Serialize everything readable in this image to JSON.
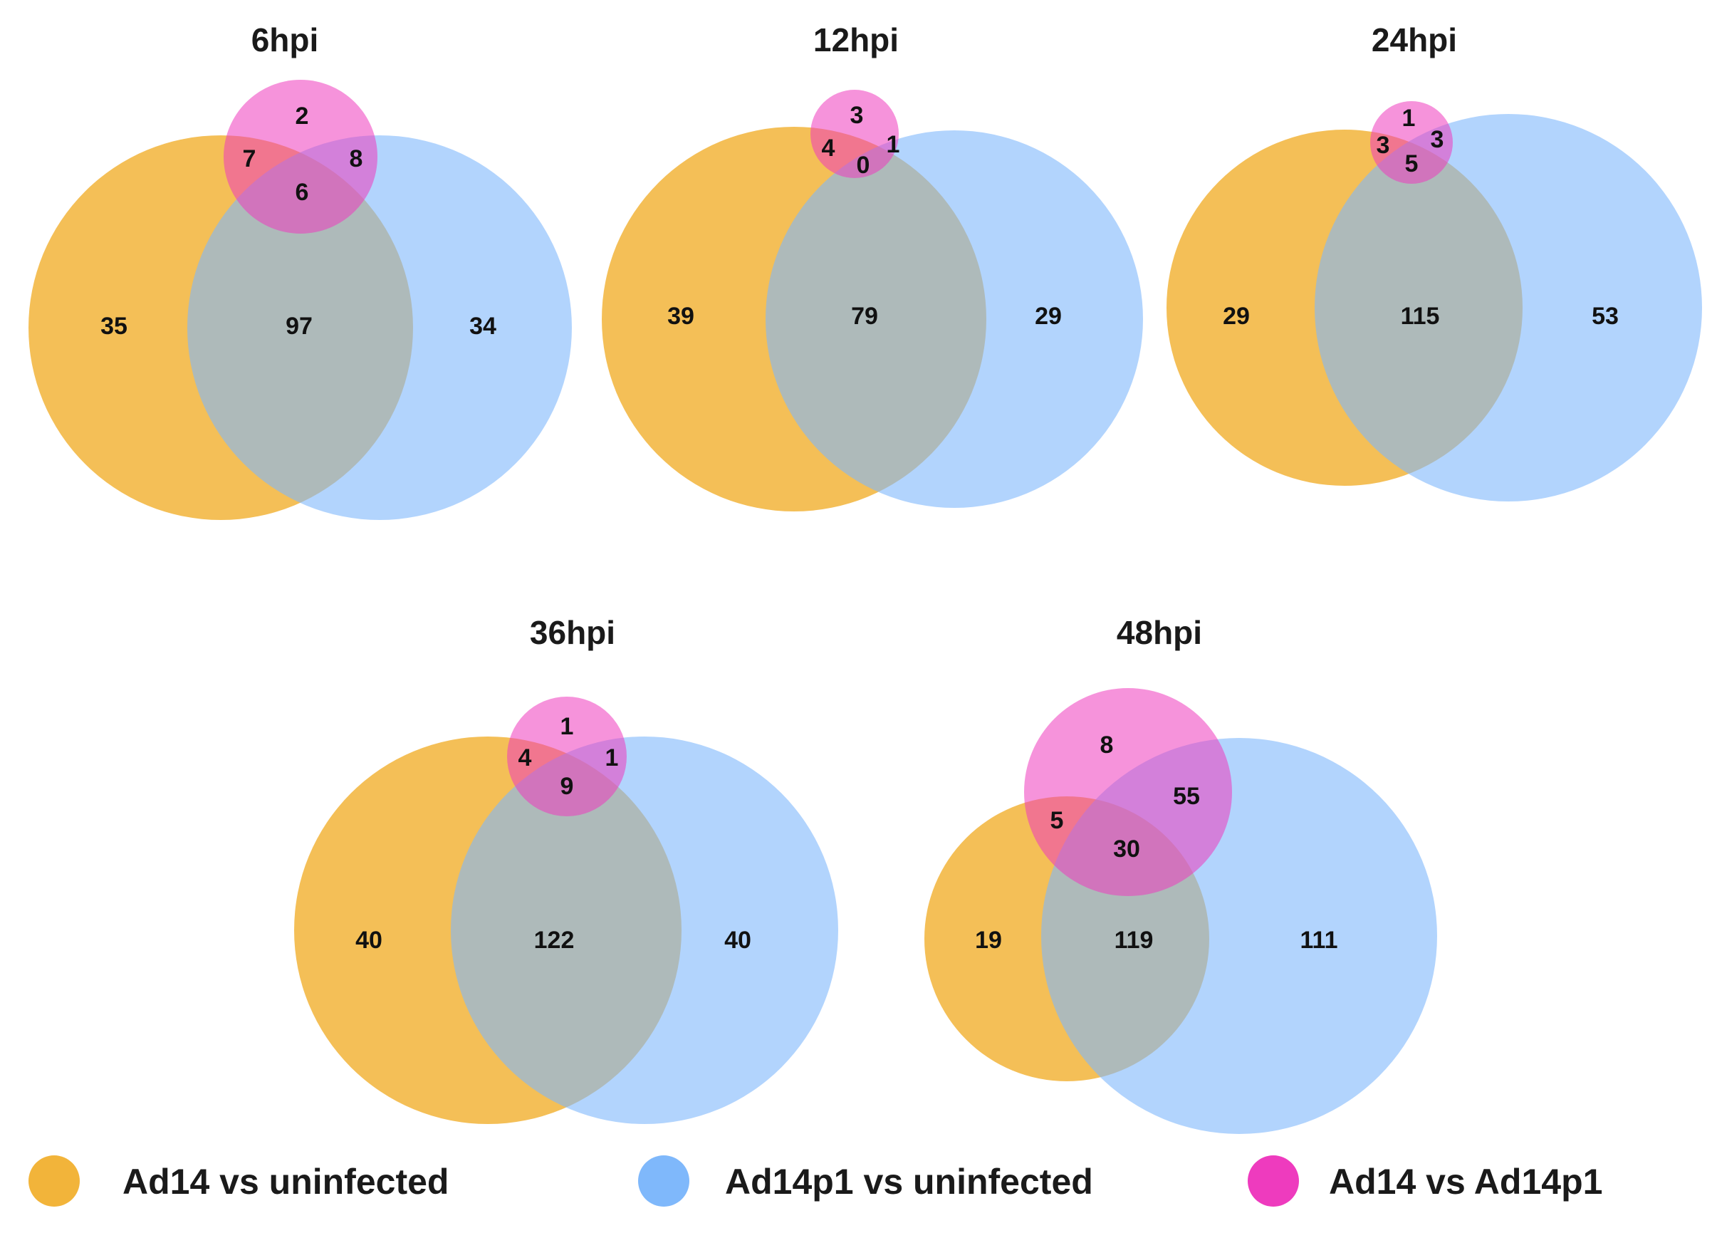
{
  "colors": {
    "ad14_vs_uninfected": "#F2B43A",
    "ad14p1_vs_uninfected": "#7FB8FB",
    "ad14_vs_ad14p1": "#EE3BBE"
  },
  "panels": [
    {
      "title": "6hpi",
      "counts": {
        "ad14_only": "35",
        "orange_blue": "97",
        "ad14p1_only": "34",
        "pink_only": "2",
        "orange_pink": "7",
        "blue_pink": "8",
        "all_three": "6"
      }
    },
    {
      "title": "12hpi",
      "counts": {
        "ad14_only": "39",
        "orange_blue": "79",
        "ad14p1_only": "29",
        "pink_only": "3",
        "orange_pink": "4",
        "blue_pink": "1",
        "all_three": "0"
      }
    },
    {
      "title": "24hpi",
      "counts": {
        "ad14_only": "29",
        "orange_blue": "115",
        "ad14p1_only": "53",
        "pink_only": "1",
        "orange_pink": "3",
        "blue_pink": "3",
        "all_three": "5"
      }
    },
    {
      "title": "36hpi",
      "counts": {
        "ad14_only": "40",
        "orange_blue": "122",
        "ad14p1_only": "40",
        "pink_only": "1",
        "orange_pink": "4",
        "blue_pink": "1",
        "all_three": "9"
      }
    },
    {
      "title": "48hpi",
      "counts": {
        "ad14_only": "19",
        "orange_blue": "119",
        "ad14p1_only": "111",
        "pink_only": "8",
        "orange_pink": "5",
        "blue_pink": "55",
        "all_three": "30"
      }
    }
  ],
  "legend": [
    {
      "label": "Ad14 vs uninfected"
    },
    {
      "label": "Ad14p1 vs uninfected"
    },
    {
      "label": "Ad14 vs Ad14p1"
    }
  ]
}
